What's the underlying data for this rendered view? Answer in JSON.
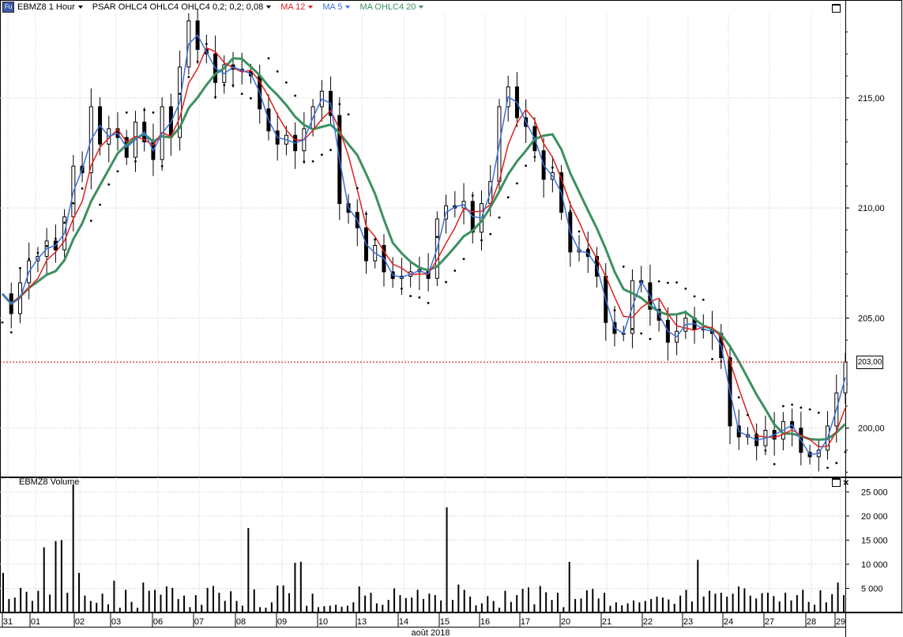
{
  "header": {
    "fu_badge": "Fu",
    "symbol_label": "EBMZ8 1 Hour",
    "psar_label": "PSAR OHLC4 OHLC4 OHLC4  0,2; 0,2; 0,08",
    "ma12_label": "MA 12",
    "ma5_label": "MA 5",
    "ma20_label": "MA OHLC4  20",
    "ma12_color": "#e02020",
    "ma5_color": "#3d6fe0",
    "ma20_color": "#3c9060"
  },
  "volume_panel": {
    "title": "EBMZ8 Volume"
  },
  "last_price": {
    "value": 203.0,
    "label": "203,00",
    "line_color": "#d00000"
  },
  "chart_data": [
    {
      "type": "candlestick",
      "name": "EBMZ8 1 Hour",
      "x_ticks": [
        "31",
        "01",
        "02",
        "03",
        "06",
        "07",
        "08",
        "09",
        "10",
        "13",
        "14",
        "15",
        "16",
        "17",
        "20",
        "21",
        "22",
        "23",
        "24",
        "27",
        "28",
        "29"
      ],
      "x_axis_label": "août 2018",
      "y_ticks": [
        "200,00",
        "205,00",
        "210,00",
        "215,00"
      ],
      "ylim": [
        197.8,
        218.8
      ],
      "grid": true,
      "close_series": [
        [
          0,
          206.1
        ],
        [
          4,
          205.2
        ],
        [
          8,
          206.6
        ],
        [
          12,
          207.6
        ],
        [
          16,
          207.8
        ],
        [
          20,
          208.5
        ],
        [
          24,
          208.1
        ],
        [
          28,
          209.6
        ],
        [
          32,
          211.9
        ],
        [
          36,
          211.6
        ],
        [
          40,
          214.6
        ],
        [
          44,
          212.9
        ],
        [
          48,
          213.6
        ],
        [
          52,
          213.2
        ],
        [
          56,
          212.3
        ],
        [
          60,
          213.9
        ],
        [
          64,
          213.0
        ],
        [
          68,
          212.2
        ],
        [
          72,
          214.6
        ],
        [
          76,
          213.2
        ],
        [
          80,
          216.4
        ],
        [
          84,
          218.5
        ],
        [
          88,
          217.2
        ],
        [
          92,
          217.0
        ],
        [
          96,
          215.7
        ],
        [
          100,
          216.5
        ],
        [
          104,
          216.3
        ],
        [
          108,
          216.2
        ],
        [
          112,
          216.0
        ],
        [
          116,
          214.5
        ],
        [
          120,
          213.5
        ],
        [
          124,
          212.9
        ],
        [
          128,
          213.3
        ],
        [
          132,
          212.6
        ],
        [
          136,
          213.6
        ],
        [
          140,
          214.6
        ],
        [
          144,
          215.3
        ],
        [
          148,
          214.2
        ],
        [
          152,
          210.2
        ],
        [
          156,
          209.8
        ],
        [
          160,
          209.1
        ],
        [
          164,
          207.6
        ],
        [
          168,
          208.3
        ],
        [
          172,
          207.1
        ],
        [
          176,
          206.8
        ],
        [
          180,
          206.9
        ],
        [
          184,
          207.1
        ],
        [
          188,
          207.2
        ],
        [
          192,
          206.8
        ],
        [
          196,
          209.5
        ],
        [
          200,
          210.1
        ],
        [
          204,
          210.0
        ],
        [
          208,
          210.3
        ],
        [
          212,
          208.9
        ],
        [
          216,
          210.2
        ],
        [
          220,
          211.2
        ],
        [
          224,
          214.6
        ],
        [
          228,
          215.5
        ],
        [
          232,
          214.1
        ],
        [
          236,
          213.7
        ],
        [
          240,
          212.6
        ],
        [
          244,
          211.3
        ],
        [
          248,
          211.6
        ],
        [
          252,
          209.8
        ],
        [
          256,
          208.0
        ],
        [
          260,
          208.1
        ],
        [
          264,
          207.8
        ],
        [
          268,
          206.9
        ],
        [
          272,
          204.8
        ],
        [
          276,
          204.3
        ],
        [
          280,
          204.3
        ],
        [
          284,
          206.7
        ],
        [
          288,
          206.6
        ],
        [
          292,
          205.4
        ],
        [
          296,
          204.9
        ],
        [
          300,
          203.9
        ],
        [
          304,
          204.4
        ],
        [
          308,
          205.0
        ],
        [
          312,
          204.5
        ],
        [
          316,
          204.5
        ],
        [
          320,
          204.3
        ],
        [
          324,
          203.2
        ],
        [
          328,
          200.1
        ],
        [
          332,
          199.6
        ],
        [
          336,
          199.7
        ],
        [
          340,
          199.2
        ],
        [
          344,
          199.9
        ],
        [
          348,
          199.5
        ],
        [
          352,
          200.3
        ],
        [
          356,
          200.0
        ],
        [
          360,
          198.9
        ],
        [
          364,
          198.7
        ],
        [
          368,
          199.0
        ],
        [
          372,
          200.1
        ],
        [
          376,
          201.6
        ],
        [
          380,
          203.0
        ]
      ]
    },
    {
      "type": "bar",
      "name": "EBMZ8 Volume",
      "y_ticks": [
        "5 000",
        "10 000",
        "15 000",
        "20 000",
        "25 000"
      ],
      "ylim": [
        0,
        28000
      ],
      "values": [
        8200,
        2800,
        3100,
        5100,
        4300,
        2400,
        4500,
        13500,
        3700,
        14800,
        15000,
        4100,
        26500,
        8200,
        3500,
        2400,
        2000,
        3900,
        1700,
        6600,
        1000,
        4700,
        2200,
        1000,
        6200,
        4500,
        4700,
        3700,
        5400,
        5100,
        2800,
        3500,
        1100,
        3600,
        1600,
        5100,
        5500,
        4100,
        2400,
        4400,
        2400,
        1400,
        17500,
        4800,
        1100,
        1000,
        2100,
        5600,
        5600,
        4000,
        10300,
        10500,
        1400,
        3900,
        1100,
        1300,
        1400,
        1600,
        1200,
        1400,
        2100,
        5400,
        3500,
        4100,
        1900,
        1600,
        2600,
        5000,
        3600,
        3000,
        3100,
        4700,
        2800,
        3900,
        3600,
        2500,
        21800,
        2600,
        5800,
        4700,
        3300,
        1500,
        1900,
        3400,
        2400,
        1000,
        4500,
        2200,
        3600,
        4900,
        5200,
        1700,
        5500,
        4200,
        2600,
        4100,
        1100,
        10500,
        2800,
        2900,
        4600,
        4900,
        2900,
        4100,
        1400,
        2100,
        1500,
        1900,
        2500,
        2100,
        2400,
        2800,
        3300,
        3100,
        2700,
        1800,
        3500,
        4700,
        2300,
        10900,
        3300,
        4500,
        3900,
        4100,
        3300,
        3900,
        5400,
        5000,
        3500,
        2900,
        4000,
        4100,
        3400,
        2300,
        4100,
        2500,
        3600,
        4700,
        2200,
        1600,
        4600,
        2100,
        3800,
        6200,
        3600
      ]
    }
  ]
}
